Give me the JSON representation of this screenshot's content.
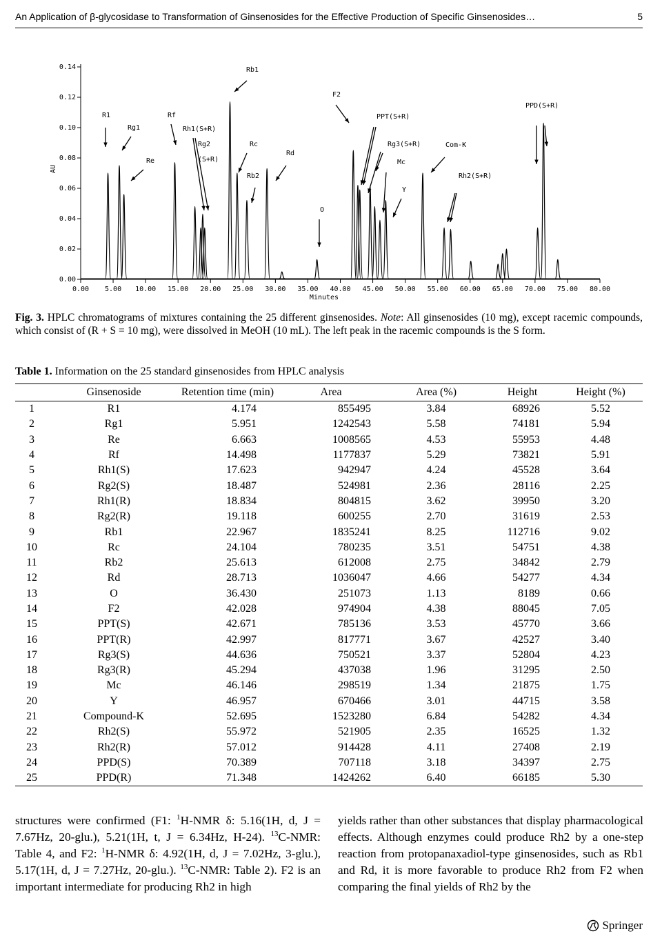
{
  "header": {
    "title": "An Application of β-glycosidase to Transformation of Ginsenosides for the Effective Production of Specific Ginsenosides…",
    "page": "5"
  },
  "chart_data": {
    "type": "chromatogram",
    "x_label": "Minutes",
    "y_label": "AU",
    "color": "#000000",
    "x": [
      4.2,
      5.95,
      6.66,
      14.5,
      17.6,
      18.5,
      18.8,
      19.1,
      23.0,
      24.1,
      25.6,
      28.7,
      31.0,
      36.4,
      42.0,
      42.7,
      43.0,
      44.6,
      45.3,
      46.1,
      47.0,
      52.7,
      56.0,
      57.0,
      60.1,
      64.3,
      65.0,
      65.6,
      70.4,
      71.3,
      73.5
    ],
    "values": [
      0.07,
      0.075,
      0.056,
      0.077,
      0.048,
      0.034,
      0.043,
      0.034,
      0.117,
      0.07,
      0.052,
      0.073,
      0.005,
      0.013,
      0.085,
      0.062,
      0.059,
      0.061,
      0.048,
      0.039,
      0.052,
      0.07,
      0.034,
      0.033,
      0.012,
      0.01,
      0.017,
      0.02,
      0.034,
      0.103,
      0.013
    ],
    "xlim": [
      0,
      80
    ],
    "ylim": [
      0,
      0.14
    ],
    "xticks": [
      {
        "value": 0,
        "label": "0.00"
      },
      {
        "value": 5,
        "label": "5.00"
      },
      {
        "value": 10,
        "label": "10.00"
      },
      {
        "value": 15,
        "label": "15.00"
      },
      {
        "value": 20,
        "label": "20.00"
      },
      {
        "value": 25,
        "label": "25.00"
      },
      {
        "value": 30,
        "label": "30.00"
      },
      {
        "value": 35,
        "label": "35.00"
      },
      {
        "value": 40,
        "label": "40.00"
      },
      {
        "value": 45,
        "label": "45.00"
      },
      {
        "value": 50,
        "label": "50.00"
      },
      {
        "value": 55,
        "label": "55.00"
      },
      {
        "value": 60,
        "label": "60.00"
      },
      {
        "value": 65,
        "label": "65.00"
      },
      {
        "value": 70,
        "label": "70.00"
      },
      {
        "value": 75,
        "label": "75.00"
      },
      {
        "value": 80,
        "label": "80.00"
      }
    ],
    "yticks": [
      {
        "value": 0,
        "label": "0.00"
      },
      {
        "value": 0.02,
        "label": "0.02"
      },
      {
        "value": 0.04,
        "label": "0.04"
      },
      {
        "value": 0.06,
        "label": "0.06"
      },
      {
        "value": 0.08,
        "label": "0.08"
      },
      {
        "value": 0.1,
        "label": "0.10"
      },
      {
        "value": 0.12,
        "label": "0.12"
      },
      {
        "value": 0.14,
        "label": "0.14"
      }
    ],
    "annotations": [
      "R1",
      "Rg1",
      "Re",
      "Rf",
      "Rh1(S+R)",
      "Rg2",
      "(S+R)",
      "Rb1",
      "Rc",
      "Rb2",
      "Rd",
      "O",
      "F2",
      "PPT(S+R)",
      "Rg3(S+R)",
      "Mc",
      "Y",
      "Com-K",
      "Rh2(S+R)",
      "PPD(S+R)"
    ]
  },
  "caption": {
    "label": "Fig. 3.",
    "text1": " HPLC chromatograms of mixtures containing the 25 different ginsenosides. ",
    "note": "Note",
    "text2": ": All ginsenosides (10 mg), except racemic compounds, which consist of (R + S = 10 mg), were dissolved in MeOH (10 mL). The left peak in the racemic compounds is the S form."
  },
  "table": {
    "label": "Table 1.",
    "title": " Information on the 25 standard ginsenosides from HPLC analysis",
    "header": [
      "",
      "Ginsenoside",
      "Retention time (min)",
      "Area",
      "Area (%)",
      "Height",
      "Height (%)"
    ],
    "rows": [
      [
        "1",
        "R1",
        "4.174",
        "855495",
        "3.84",
        "68926",
        "5.52"
      ],
      [
        "2",
        "Rg1",
        "5.951",
        "1242543",
        "5.58",
        "74181",
        "5.94"
      ],
      [
        "3",
        "Re",
        "6.663",
        "1008565",
        "4.53",
        "55953",
        "4.48"
      ],
      [
        "4",
        "Rf",
        "14.498",
        "1177837",
        "5.29",
        "73821",
        "5.91"
      ],
      [
        "5",
        "Rh1(S)",
        "17.623",
        "942947",
        "4.24",
        "45528",
        "3.64"
      ],
      [
        "6",
        "Rg2(S)",
        "18.487",
        "524981",
        "2.36",
        "28116",
        "2.25"
      ],
      [
        "7",
        "Rh1(R)",
        "18.834",
        "804815",
        "3.62",
        "39950",
        "3.20"
      ],
      [
        "8",
        "Rg2(R)",
        "19.118",
        "600255",
        "2.70",
        "31619",
        "2.53"
      ],
      [
        "9",
        "Rb1",
        "22.967",
        "1835241",
        "8.25",
        "112716",
        "9.02"
      ],
      [
        "10",
        "Rc",
        "24.104",
        "780235",
        "3.51",
        "54751",
        "4.38"
      ],
      [
        "11",
        "Rb2",
        "25.613",
        "612008",
        "2.75",
        "34842",
        "2.79"
      ],
      [
        "12",
        "Rd",
        "28.713",
        "1036047",
        "4.66",
        "54277",
        "4.34"
      ],
      [
        "13",
        "O",
        "36.430",
        "251073",
        "1.13",
        "8189",
        "0.66"
      ],
      [
        "14",
        "F2",
        "42.028",
        "974904",
        "4.38",
        "88045",
        "7.05"
      ],
      [
        "15",
        "PPT(S)",
        "42.671",
        "785136",
        "3.53",
        "45770",
        "3.66"
      ],
      [
        "16",
        "PPT(R)",
        "42.997",
        "817771",
        "3.67",
        "42527",
        "3.40"
      ],
      [
        "17",
        "Rg3(S)",
        "44.636",
        "750521",
        "3.37",
        "52804",
        "4.23"
      ],
      [
        "18",
        "Rg3(R)",
        "45.294",
        "437038",
        "1.96",
        "31295",
        "2.50"
      ],
      [
        "19",
        "Mc",
        "46.146",
        "298519",
        "1.34",
        "21875",
        "1.75"
      ],
      [
        "20",
        "Y",
        "46.957",
        "670466",
        "3.01",
        "44715",
        "3.58"
      ],
      [
        "21",
        "Compound-K",
        "52.695",
        "1523280",
        "6.84",
        "54282",
        "4.34"
      ],
      [
        "22",
        "Rh2(S)",
        "55.972",
        "521905",
        "2.35",
        "16525",
        "1.32"
      ],
      [
        "23",
        "Rh2(R)",
        "57.012",
        "914428",
        "4.11",
        "27408",
        "2.19"
      ],
      [
        "24",
        "PPD(S)",
        "70.389",
        "707118",
        "3.18",
        "34397",
        "2.75"
      ],
      [
        "25",
        "PPD(R)",
        "71.348",
        "1424262",
        "6.40",
        "66185",
        "5.30"
      ]
    ]
  },
  "body": {
    "left": [
      "structures were confirmed (F1: ",
      "1",
      "H-NMR δ: 5.16(1H, d, J = 7.67Hz, 20-glu.), 5.21(1H, t, J = 6.34Hz, H-24). ",
      "13",
      "C-NMR: Table 4, and F2: ",
      "1",
      "H-NMR δ: 4.92(1H, d, J = 7.02Hz, 3-glu.), 5.17(1H, d, J = 7.27Hz, 20-glu.). ",
      "13",
      "C-NMR: Table 2). F2 is an important intermediate for producing Rh2 in high"
    ],
    "right": [
      "yields rather than other substances that display pharmacological effects. Although enzymes could produce Rh2 by a one-step reaction from protopanaxadiol-type ginsenosides, such as Rb1 and Rd, it is more favorable to produce Rh2 from F2 when comparing the final yields of Rh2 by the"
    ]
  },
  "footer": {
    "publisher": "Springer"
  }
}
